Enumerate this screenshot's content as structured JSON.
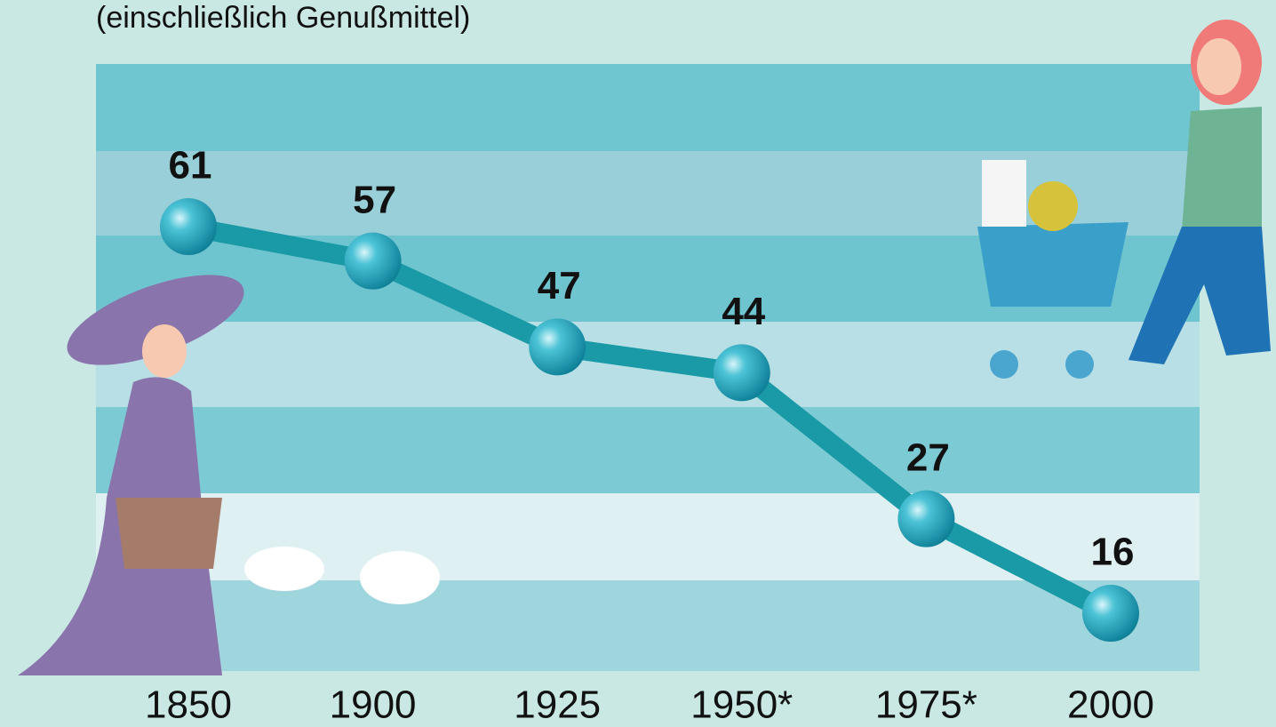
{
  "chart_data": {
    "type": "line",
    "subtitle": "(einschließlich Genußmittel)",
    "categories": [
      "1850",
      "1900",
      "1925",
      "1950*",
      "1975*",
      "2000"
    ],
    "values": [
      61,
      57,
      47,
      44,
      27,
      16
    ],
    "color": "#1a9aa6"
  }
}
